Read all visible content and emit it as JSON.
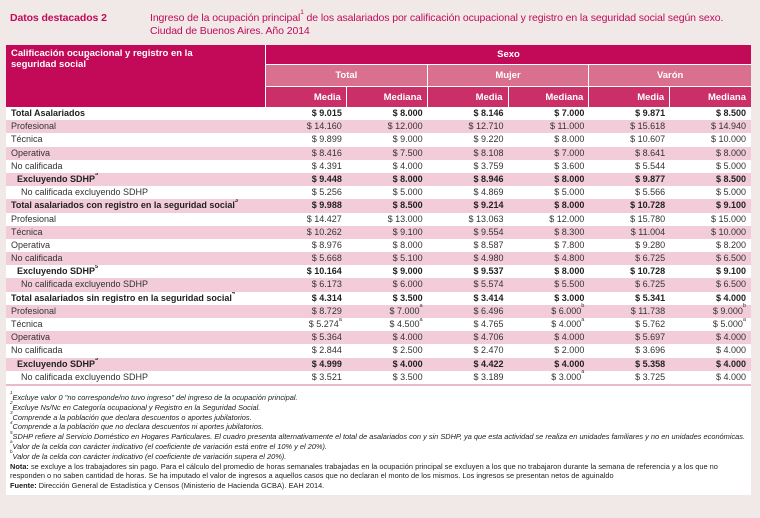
{
  "colors": {
    "accent": "#c10a58",
    "header_dark": "#c20a58",
    "header_mid": "#cb2f68",
    "header_light": "#d9708f",
    "row_shade": "#f2ccd9",
    "page_bg": "#f0e9e8"
  },
  "header": {
    "kicker": "Datos destacados 2",
    "title_pre": "Ingreso de la ocupación principal",
    "title_sup": "1",
    "title_post": " de los asalariados por calificación ocupacional y registro en la seguridad social según sexo. Ciudad de Buenos Aires. Año 2014"
  },
  "table": {
    "row_header_pre": "Calificación ocupacional y registro en la seguridad social",
    "row_header_sup": "2",
    "sex_header": "Sexo",
    "groups": [
      "Total",
      "Mujer",
      "Varón"
    ],
    "measures": [
      "Media",
      "Mediana"
    ],
    "rows": [
      {
        "label": "Total Asalariados",
        "sup": "",
        "bold": true,
        "indent": 0,
        "cells": [
          [
            "$ 9.015",
            ""
          ],
          [
            "$ 8.000",
            ""
          ],
          [
            "$ 8.146",
            ""
          ],
          [
            "$ 7.000",
            ""
          ],
          [
            "$ 9.871",
            ""
          ],
          [
            "$ 8.500",
            ""
          ]
        ]
      },
      {
        "label": "Profesional",
        "sup": "",
        "bold": false,
        "indent": 0,
        "cells": [
          [
            "$ 14.160",
            ""
          ],
          [
            "$ 12.000",
            ""
          ],
          [
            "$ 12.710",
            ""
          ],
          [
            "$ 11.000",
            ""
          ],
          [
            "$ 15.618",
            ""
          ],
          [
            "$ 14.940",
            ""
          ]
        ]
      },
      {
        "label": "Técnica",
        "sup": "",
        "bold": false,
        "indent": 0,
        "cells": [
          [
            "$ 9.899",
            ""
          ],
          [
            "$ 9.000",
            ""
          ],
          [
            "$ 9.220",
            ""
          ],
          [
            "$ 8.000",
            ""
          ],
          [
            "$ 10.607",
            ""
          ],
          [
            "$ 10.000",
            ""
          ]
        ]
      },
      {
        "label": "Operativa",
        "sup": "",
        "bold": false,
        "indent": 0,
        "cells": [
          [
            "$ 8.416",
            ""
          ],
          [
            "$ 7.500",
            ""
          ],
          [
            "$ 8.108",
            ""
          ],
          [
            "$ 7.000",
            ""
          ],
          [
            "$ 8.641",
            ""
          ],
          [
            "$ 8.000",
            ""
          ]
        ]
      },
      {
        "label": "No calificada",
        "sup": "",
        "bold": false,
        "indent": 0,
        "cells": [
          [
            "$ 4.391",
            ""
          ],
          [
            "$ 4.000",
            ""
          ],
          [
            "$ 3.759",
            ""
          ],
          [
            "$ 3.600",
            ""
          ],
          [
            "$ 5.544",
            ""
          ],
          [
            "$ 5.000",
            ""
          ]
        ]
      },
      {
        "label": "Excluyendo SDHP",
        "sup": "5",
        "bold": true,
        "indent": 1,
        "cells": [
          [
            "$ 9.448",
            ""
          ],
          [
            "$ 8.000",
            ""
          ],
          [
            "$ 8.946",
            ""
          ],
          [
            "$ 8.000",
            ""
          ],
          [
            "$ 9.877",
            ""
          ],
          [
            "$ 8.500",
            ""
          ]
        ]
      },
      {
        "label": "No calificada excluyendo SDHP",
        "sup": "",
        "bold": false,
        "indent": 2,
        "cells": [
          [
            "$ 5.256",
            ""
          ],
          [
            "$ 5.000",
            ""
          ],
          [
            "$ 4.869",
            ""
          ],
          [
            "$ 5.000",
            ""
          ],
          [
            "$ 5.566",
            ""
          ],
          [
            "$ 5.000",
            ""
          ]
        ]
      },
      {
        "label": "Total asalariados con registro en la seguridad social",
        "sup": "3",
        "bold": true,
        "indent": 0,
        "cells": [
          [
            "$ 9.988",
            ""
          ],
          [
            "$ 8.500",
            ""
          ],
          [
            "$ 9.214",
            ""
          ],
          [
            "$ 8.000",
            ""
          ],
          [
            "$ 10.728",
            ""
          ],
          [
            "$ 9.100",
            ""
          ]
        ]
      },
      {
        "label": "Profesional",
        "sup": "",
        "bold": false,
        "indent": 0,
        "cells": [
          [
            "$ 14.427",
            ""
          ],
          [
            "$ 13.000",
            ""
          ],
          [
            "$ 13.063",
            ""
          ],
          [
            "$ 12.000",
            ""
          ],
          [
            "$ 15.780",
            ""
          ],
          [
            "$ 15.000",
            ""
          ]
        ]
      },
      {
        "label": "Técnica",
        "sup": "",
        "bold": false,
        "indent": 0,
        "cells": [
          [
            "$ 10.262",
            ""
          ],
          [
            "$ 9.100",
            ""
          ],
          [
            "$ 9.554",
            ""
          ],
          [
            "$ 8.300",
            ""
          ],
          [
            "$ 11.004",
            ""
          ],
          [
            "$ 10.000",
            ""
          ]
        ]
      },
      {
        "label": "Operativa",
        "sup": "",
        "bold": false,
        "indent": 0,
        "cells": [
          [
            "$ 8.976",
            ""
          ],
          [
            "$ 8.000",
            ""
          ],
          [
            "$ 8.587",
            ""
          ],
          [
            "$ 7.800",
            ""
          ],
          [
            "$ 9.280",
            ""
          ],
          [
            "$ 8.200",
            ""
          ]
        ]
      },
      {
        "label": "No calificada",
        "sup": "",
        "bold": false,
        "indent": 0,
        "cells": [
          [
            "$ 5.668",
            ""
          ],
          [
            "$ 5.100",
            ""
          ],
          [
            "$ 4.980",
            ""
          ],
          [
            "$ 4.800",
            ""
          ],
          [
            "$ 6.725",
            ""
          ],
          [
            "$ 6.500",
            ""
          ]
        ]
      },
      {
        "label": "Excluyendo SDHP",
        "sup": "5",
        "bold": true,
        "indent": 1,
        "cells": [
          [
            "$ 10.164",
            ""
          ],
          [
            "$ 9.000",
            ""
          ],
          [
            "$ 9.537",
            ""
          ],
          [
            "$ 8.000",
            ""
          ],
          [
            "$ 10.728",
            ""
          ],
          [
            "$ 9.100",
            ""
          ]
        ]
      },
      {
        "label": "No calificada excluyendo SDHP",
        "sup": "",
        "bold": false,
        "indent": 2,
        "cells": [
          [
            "$ 6.173",
            ""
          ],
          [
            "$ 6.000",
            ""
          ],
          [
            "$ 5.574",
            ""
          ],
          [
            "$ 5.500",
            ""
          ],
          [
            "$ 6.725",
            ""
          ],
          [
            "$ 6.500",
            ""
          ]
        ]
      },
      {
        "label": "Total asalariados sin registro en la seguridad social",
        "sup": "4",
        "bold": true,
        "indent": 0,
        "cells": [
          [
            "$ 4.314",
            ""
          ],
          [
            "$ 3.500",
            ""
          ],
          [
            "$ 3.414",
            ""
          ],
          [
            "$ 3.000",
            ""
          ],
          [
            "$ 5.341",
            ""
          ],
          [
            "$ 4.000",
            ""
          ]
        ]
      },
      {
        "label": "Profesional",
        "sup": "",
        "bold": false,
        "indent": 0,
        "cells": [
          [
            "$ 8.729",
            ""
          ],
          [
            "$ 7.000",
            "a"
          ],
          [
            "$ 6.496",
            ""
          ],
          [
            "$ 6.000",
            "b"
          ],
          [
            "$ 11.738",
            ""
          ],
          [
            "$ 9.000",
            "b"
          ]
        ]
      },
      {
        "label": "Técnica",
        "sup": "",
        "bold": false,
        "indent": 0,
        "cells": [
          [
            "$ 5.274",
            "a"
          ],
          [
            "$ 4.500",
            "a"
          ],
          [
            "$ 4.765",
            ""
          ],
          [
            "$ 4.000",
            "a"
          ],
          [
            "$ 5.762",
            ""
          ],
          [
            "$ 5.000",
            "a"
          ]
        ]
      },
      {
        "label": "Operativa",
        "sup": "",
        "bold": false,
        "indent": 0,
        "cells": [
          [
            "$ 5.364",
            ""
          ],
          [
            "$ 4.000",
            ""
          ],
          [
            "$ 4.706",
            ""
          ],
          [
            "$ 4.000",
            ""
          ],
          [
            "$ 5.697",
            ""
          ],
          [
            "$ 4.000",
            ""
          ]
        ]
      },
      {
        "label": "No calificada",
        "sup": "",
        "bold": false,
        "indent": 0,
        "cells": [
          [
            "$ 2.844",
            ""
          ],
          [
            "$ 2.500",
            ""
          ],
          [
            "$ 2.470",
            ""
          ],
          [
            "$ 2.000",
            ""
          ],
          [
            "$ 3.696",
            ""
          ],
          [
            "$ 4.000",
            ""
          ]
        ]
      },
      {
        "label": "Excluyendo SDHP",
        "sup": "5",
        "bold": true,
        "indent": 1,
        "cells": [
          [
            "$ 4.999",
            ""
          ],
          [
            "$ 4.000",
            ""
          ],
          [
            "$ 4.422",
            ""
          ],
          [
            "$ 4.000",
            ""
          ],
          [
            "$ 5.358",
            ""
          ],
          [
            "$ 4.000",
            ""
          ]
        ]
      },
      {
        "label": "No calificada excluyendo SDHP",
        "sup": "",
        "bold": false,
        "indent": 2,
        "cells": [
          [
            "$ 3.521",
            ""
          ],
          [
            "$ 3.500",
            ""
          ],
          [
            "$ 3.189",
            ""
          ],
          [
            "$ 3.000",
            "a"
          ],
          [
            "$ 3.725",
            ""
          ],
          [
            "$ 4.000",
            ""
          ]
        ]
      }
    ]
  },
  "footnotes": [
    {
      "sup": "1",
      "text": "Excluye valor 0 \"no corresponde/no tuvo ingreso\" del ingreso de la ocupación principal."
    },
    {
      "sup": "2",
      "text": "Excluye Ns/Nc en Categoría ocupacional y Registro en la Seguridad Social."
    },
    {
      "sup": "3",
      "text": "Comprende a la población que declara descuentos o aportes jubilatorios."
    },
    {
      "sup": "4",
      "text": "Comprende a la población que no declara descuentos ni aportes jubilatorios."
    },
    {
      "sup": "5",
      "text": "SDHP refiere al Servicio Doméstico en Hogares Particulares. El cuadro presenta alternativamente el total de asalariados con y sin SDHP, ya que esta actividad se realiza en unidades familiares y no en unidades económicas."
    },
    {
      "sup": "a",
      "text": "Valor de la celda con carácter indicativo (el coeficiente de variación está entre el 10% y el 20%)."
    },
    {
      "sup": "b",
      "text": "Valor de la celda con carácter indicativo (el coeficiente de variación supera el 20%)."
    }
  ],
  "nota": {
    "lead": "Nota:",
    "text": " se excluye a los trabajadores sin pago. Para el cálculo del promedio de horas semanales trabajadas en la ocupación principal se excluyen a los que no trabajaron durante la semana de referencia y a los que no responden o no saben cantidad de horas. Se ha imputado el valor de ingresos a aquellos casos que no declaran el monto de los mismos. Los ingresos se presentan netos de aguinaldo"
  },
  "fuente": {
    "lead": "Fuente:",
    "text": " Dirección General de Estadística y Censos (Ministerio de Hacienda GCBA). EAH 2014."
  }
}
